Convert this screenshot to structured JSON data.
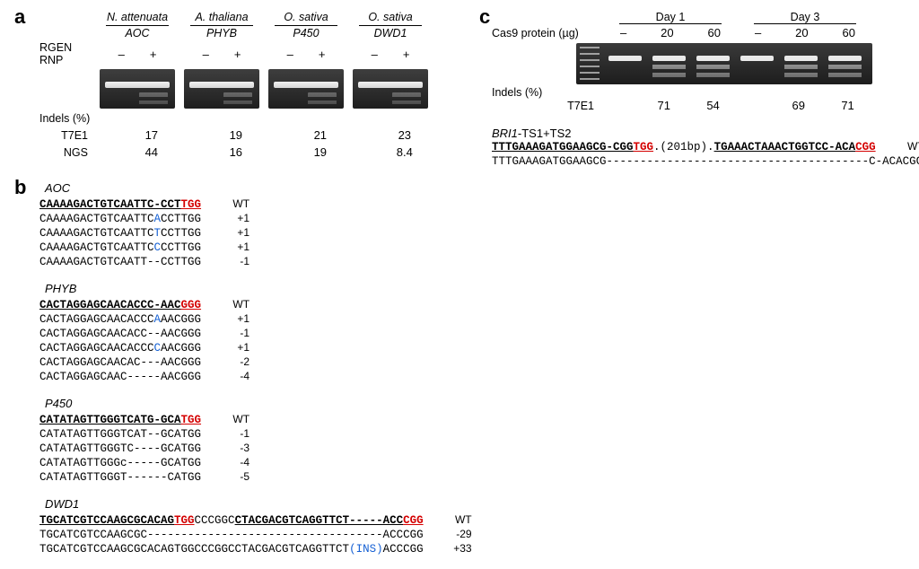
{
  "panelA": {
    "label": "a",
    "rgen_label": "RGEN RNP",
    "indels_header": "Indels (%)",
    "metrics": [
      "T7E1",
      "NGS"
    ],
    "pm": [
      "–",
      "+"
    ],
    "samples": [
      {
        "species": "N. attenuata",
        "gene": "AOC",
        "t7e1": "17",
        "ngs": "44"
      },
      {
        "species": "A. thaliana",
        "gene": "PHYB",
        "t7e1": "19",
        "ngs": "16"
      },
      {
        "species": "O. sativa",
        "gene": "P450",
        "t7e1": "21",
        "ngs": "19"
      },
      {
        "species": "O. sativa",
        "gene": "DWD1",
        "t7e1": "23",
        "ngs": "8.4"
      }
    ]
  },
  "panelB": {
    "label": "b",
    "blocks": {
      "AOC": {
        "title": "AOC",
        "lines": [
          {
            "pre": "CAAAAGACTGTCAATTC-CCT",
            "pam": "TGG",
            "post": "",
            "anno": "WT",
            "wt": true
          },
          {
            "pre": "CAAAAGACTGTCAATTC",
            "ins": "A",
            "post": "CCTTGG",
            "anno": "+1"
          },
          {
            "pre": "CAAAAGACTGTCAATTC",
            "ins": "T",
            "post": "CCTTGG",
            "anno": "+1"
          },
          {
            "pre": "CAAAAGACTGTCAATTC",
            "ins": "C",
            "post": "CCTTGG",
            "anno": "+1"
          },
          {
            "pre": "CAAAAGACTGTCAATT--CCTTGG",
            "anno": "-1"
          }
        ]
      },
      "PHYB": {
        "title": "PHYB",
        "lines": [
          {
            "pre": "CACTAGGAGCAACACCC-AAC",
            "pam": "GGG",
            "post": "",
            "anno": "WT",
            "wt": true
          },
          {
            "pre": "CACTAGGAGCAACACCC",
            "ins": "A",
            "post": "AACGGG",
            "anno": "+1"
          },
          {
            "pre": "CACTAGGAGCAACACC--AACGGG",
            "anno": "-1"
          },
          {
            "pre": "CACTAGGAGCAACACCC",
            "ins": "C",
            "post": "AACGGG",
            "anno": "+1"
          },
          {
            "pre": "CACTAGGAGCAACAC---AACGGG",
            "anno": "-2"
          },
          {
            "pre": "CACTAGGAGCAAC-----AACGGG",
            "anno": "-4"
          }
        ]
      },
      "P450": {
        "title": "P450",
        "lines": [
          {
            "pre": "CATATAGTTGGGTCATG-GCA",
            "pam": "TGG",
            "post": "",
            "anno": "WT",
            "wt": true
          },
          {
            "pre": "CATATAGTTGGGTCAT--GCATGG",
            "anno": "-1"
          },
          {
            "pre": "CATATAGTTGGGTC----GCATGG",
            "anno": "-3"
          },
          {
            "pre": "CATATAGTTGGGc-----GCATGG",
            "anno": "-4"
          },
          {
            "pre": "CATATAGTTGGGT------CATGG",
            "anno": "-5"
          }
        ]
      },
      "DWD1": {
        "title": "DWD1",
        "lines": [
          {
            "seg1": "TGCATCGTCCAAGCGCACAG",
            "pam1": "TGG",
            "mid": "CCCGGC",
            "seg2": "CTACGACGTCAGGTTCT-----ACC",
            "pam2": "CGG",
            "anno": "WT",
            "wt": true
          },
          {
            "full": "TGCATCGTCCAAGCGC-----------------------------------ACCCGG",
            "anno": "-29"
          },
          {
            "full_pre": "TGCATCGTCCAAGCGCACAGTGGCCCGGCCTACGACGTCAGGTTCT",
            "ins": "(INS)",
            "full_post": "ACCCGG",
            "anno": "+33"
          }
        ]
      }
    }
  },
  "panelC": {
    "label": "c",
    "days": [
      "Day 1",
      "Day 3"
    ],
    "cas_label": "Cas9 protein (µg)",
    "doses": [
      "–",
      "20",
      "60"
    ],
    "indels_header": "Indels (%)",
    "t7e1_label": "T7E1",
    "t7e1_values": [
      "",
      "71",
      "54",
      "",
      "69",
      "71"
    ],
    "bri": {
      "title_gene": "BRI1",
      "title_rest": "-TS1+TS2",
      "lines": [
        {
          "seg1": "TTTGAAAGATGGAAGCG-CGG",
          "pam1": "TGG",
          "mid": ".(201bp).",
          "seg2": "TGAAACTAAACTGGTCC-ACA",
          "pam2": "CGG",
          "anno": "WT",
          "wt": true
        },
        {
          "full": "TTTGAAAGATGGAAGCG---------------------------------------C-ACACGG",
          "anno": "-223"
        }
      ]
    }
  }
}
